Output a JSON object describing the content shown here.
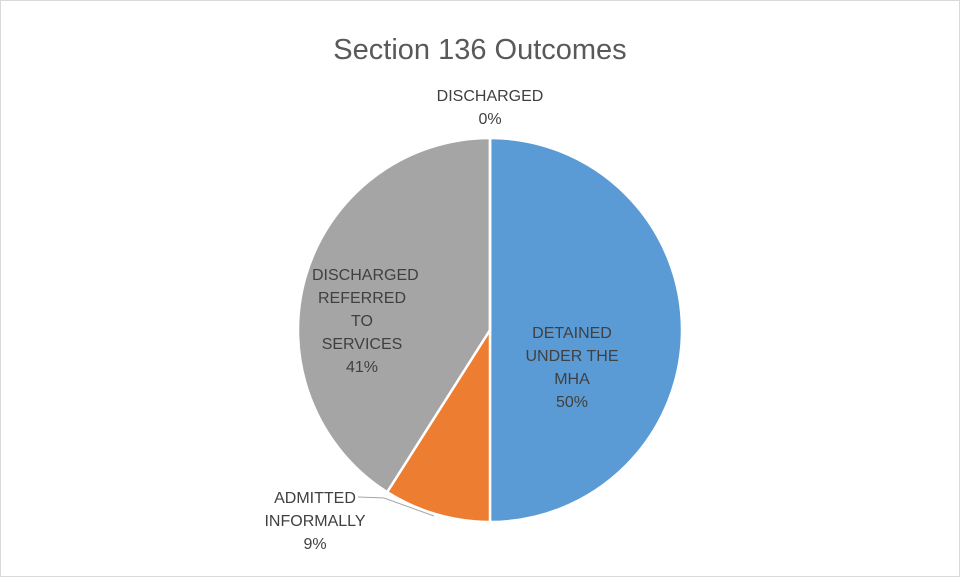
{
  "chart_data": {
    "type": "pie",
    "title": "Section 136 Outcomes",
    "categories": [
      "DETAINED UNDER THE MHA",
      "ADMITTED INFORMALLY",
      "DISCHARGED REFERRED TO SERVICES",
      "DISCHARGED"
    ],
    "values": [
      50,
      9,
      41,
      0
    ],
    "value_labels": [
      "50%",
      "9%",
      "41%",
      "0%"
    ],
    "colors": [
      "#5b9bd5",
      "#ed7d31",
      "#a5a5a5",
      "#ffc000"
    ]
  }
}
